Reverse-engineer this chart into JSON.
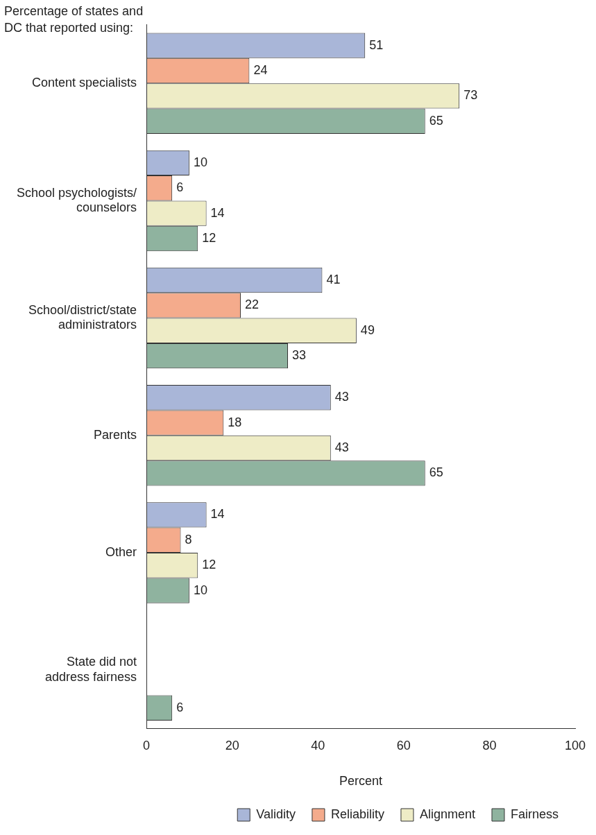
{
  "chart_data": {
    "type": "bar",
    "orientation": "horizontal",
    "title": "Percentage of states and\nDC that reported using:",
    "xlabel": "Percent",
    "categories": [
      "Content specialists",
      "School psychologists/\ncounselors",
      "School/district/state\nadministrators",
      "Parents",
      "Other",
      "State did not\naddress fairness"
    ],
    "series": [
      {
        "name": "Validity",
        "color": "#a9b6d8",
        "values": [
          51,
          10,
          41,
          43,
          14,
          null
        ]
      },
      {
        "name": "Reliability",
        "color": "#f4ab8c",
        "values": [
          24,
          6,
          22,
          18,
          8,
          null
        ]
      },
      {
        "name": "Alignment",
        "color": "#eeecc6",
        "values": [
          73,
          14,
          49,
          43,
          12,
          null
        ]
      },
      {
        "name": "Fairness",
        "color": "#8fb39f",
        "values": [
          65,
          12,
          33,
          65,
          10,
          6
        ]
      }
    ],
    "xlim": [
      0,
      100
    ],
    "xticks": [
      0,
      20,
      40,
      60,
      80,
      100
    ],
    "grid": false,
    "legend": "bottom",
    "data_labels": true
  }
}
